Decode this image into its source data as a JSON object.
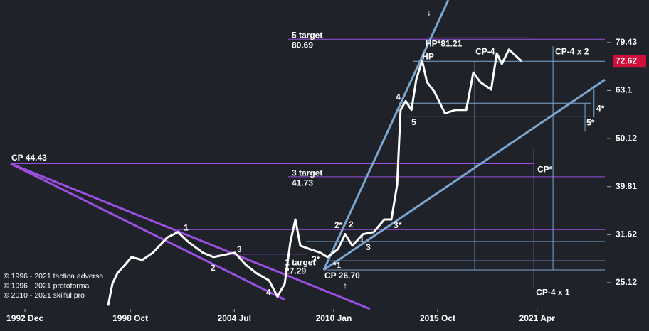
{
  "chart_data": {
    "type": "line",
    "log_scale": true,
    "xlim": [
      1991.54,
      2025.0
    ],
    "ylim": [
      22.14,
      97.4
    ],
    "xticks": [
      {
        "value": 1992.92,
        "label": "1992 Dec"
      },
      {
        "value": 1998.75,
        "label": "1998 Oct"
      },
      {
        "value": 2004.5,
        "label": "2004 Jul"
      },
      {
        "value": 2010.0,
        "label": "2010 Jan"
      },
      {
        "value": 2015.75,
        "label": "2015 Oct"
      },
      {
        "value": 2021.25,
        "label": "2021 Apr"
      }
    ],
    "yticks": [
      25.12,
      31.62,
      39.81,
      50.12,
      63.1,
      79.43
    ],
    "last_value": 72.62,
    "last_value_color": "#d0103a",
    "series": [
      {
        "color": "#ffffff",
        "x": [
          1997.52,
          1997.76,
          1998.04,
          1998.43,
          1998.82,
          1999.41,
          2000.0,
          2000.79,
          2001.38,
          2001.97,
          2002.76,
          2003.35,
          2003.94,
          2004.53,
          2005.12,
          2005.71,
          2006.42,
          2006.89,
          2007.29,
          2007.6,
          2007.88,
          2008.15,
          2008.67,
          2009.26,
          2009.65,
          2010.24,
          2010.63,
          2011.03,
          2011.62,
          2012.21,
          2012.8,
          2013.19,
          2013.51,
          2013.7,
          2013.98,
          2014.3,
          2014.57,
          2014.89,
          2015.16,
          2015.56,
          2016.15,
          2016.74,
          2017.33,
          2017.72,
          2018.11,
          2018.71,
          2019.02,
          2019.3,
          2019.69,
          2020.08,
          2020.4
        ],
        "values": [
          22.5,
          25,
          26.3,
          27.3,
          28.4,
          28,
          29,
          31.2,
          32,
          30.5,
          29,
          28.4,
          28.7,
          29,
          27.4,
          26.3,
          25.4,
          23.5,
          25,
          30.5,
          34,
          30,
          29.5,
          29,
          28.4,
          29.5,
          31.7,
          30,
          31.7,
          32,
          34,
          34,
          40.2,
          57.5,
          60,
          57.5,
          66.6,
          72.8,
          65.7,
          62.8,
          56.6,
          57.5,
          57.5,
          68.8,
          65.7,
          63.4,
          75.4,
          71.7,
          76.8,
          74.5,
          72.62
        ]
      }
    ],
    "levels": [
      {
        "value": 80.69,
        "from": 2007.48,
        "to": 2025.0,
        "color": "#9b4fe0"
      },
      {
        "value": 81.21,
        "from": 2015.16,
        "to": 2020.87,
        "color": "#b07ae8"
      },
      {
        "value": 72.62,
        "from": 2014.37,
        "to": 2025.0,
        "color": "#7aa6d0"
      },
      {
        "value": 59.4,
        "from": 2013.59,
        "to": 2024.22,
        "color": "#7aa6d0"
      },
      {
        "value": 55.8,
        "from": 2013.98,
        "to": 2024.22,
        "color": "#7aa6d0"
      },
      {
        "value": 44.43,
        "from": 1992.13,
        "to": 2021.07,
        "color": "#9b4fe0"
      },
      {
        "value": 41.73,
        "from": 2007.48,
        "to": 2025.0,
        "color": "#9b4fe0"
      },
      {
        "value": 32.4,
        "from": 2001.38,
        "to": 2025.0,
        "color": "#9b4fe0"
      },
      {
        "value": 30.6,
        "from": 2008.47,
        "to": 2025.0,
        "color": "#7aa6d0"
      },
      {
        "value": 28.8,
        "from": 2002.96,
        "to": 2008.47,
        "color": "#9b4fe0"
      },
      {
        "value": 27.9,
        "from": 2009.65,
        "to": 2025.0,
        "color": "#7aa6d0"
      },
      {
        "value": 26.7,
        "from": 2009.65,
        "to": 2025.0,
        "color": "#7aa6d0"
      }
    ],
    "verticals": [
      {
        "x": 2017.8,
        "from": 26.7,
        "to": 72.62,
        "color": "#7aa6d0"
      },
      {
        "x": 2022.13,
        "from": 26.7,
        "to": 78.0,
        "color": "#7aa6d0"
      },
      {
        "x": 2021.07,
        "from": 24.5,
        "to": 47.6,
        "color": "#9b4fe0"
      },
      {
        "x": 2023.9,
        "from": 51.8,
        "to": 59.4,
        "color": "#7aa6d0"
      },
      {
        "x": 2024.4,
        "from": 55.5,
        "to": 63.6,
        "color": "#7aa6d0"
      }
    ],
    "trendlines": [
      {
        "points": [
          [
            1992.13,
            44.43
          ],
          [
            2012.01,
            22.14
          ]
        ],
        "color": "#9b4fe0"
      },
      {
        "points": [
          [
            1992.13,
            44.43
          ],
          [
            2007.29,
            23.15
          ]
        ],
        "color": "#9b4fe0"
      },
      {
        "points": [
          [
            2009.45,
            26.7
          ],
          [
            2016.34,
            97.4
          ]
        ],
        "color": "#7aa6d0"
      },
      {
        "points": [
          [
            2009.45,
            26.7
          ],
          [
            2025.0,
            66.45
          ]
        ],
        "color": "#7aa6d0"
      }
    ],
    "annotations": [
      {
        "text": "5 target",
        "x": 2007.68,
        "y": 82.0
      },
      {
        "text": "80.69",
        "x": 2007.68,
        "y": 78.2
      },
      {
        "text": "HP*81.21",
        "x": 2015.08,
        "y": 78.8
      },
      {
        "text": "HP",
        "x": 2014.89,
        "y": 74.1
      },
      {
        "text": "CP-4",
        "x": 2017.84,
        "y": 75.9
      },
      {
        "text": "CP-4 x 2",
        "x": 2022.25,
        "y": 75.9
      },
      {
        "text": "4*",
        "x": 2024.53,
        "y": 57.8
      },
      {
        "text": "5*",
        "x": 2023.98,
        "y": 54.0
      },
      {
        "text": "4",
        "x": 2013.43,
        "y": 61.0
      },
      {
        "text": "5",
        "x": 2014.3,
        "y": 54.1
      },
      {
        "text": "CP*",
        "x": 2021.26,
        "y": 43.1
      },
      {
        "text": "3 target",
        "x": 2007.68,
        "y": 42.4
      },
      {
        "text": "41.73",
        "x": 2007.68,
        "y": 40.4
      },
      {
        "text": "CP 44.43",
        "x": 1992.17,
        "y": 45.6
      },
      {
        "text": "1",
        "x": 2001.7,
        "y": 32.6
      },
      {
        "text": "2*",
        "x": 2010.04,
        "y": 33.0
      },
      {
        "text": "2",
        "x": 2010.83,
        "y": 33.1
      },
      {
        "text": "3*",
        "x": 2013.31,
        "y": 33.0
      },
      {
        "text": "1",
        "x": 2011.42,
        "y": 30.8
      },
      {
        "text": "3",
        "x": 2011.78,
        "y": 29.7
      },
      {
        "text": "3",
        "x": 2004.65,
        "y": 29.4
      },
      {
        "text": "2",
        "x": 2003.19,
        "y": 26.9
      },
      {
        "text": "3*",
        "x": 2008.78,
        "y": 28.0
      },
      {
        "text": "1 target",
        "x": 2007.29,
        "y": 27.6
      },
      {
        "text": "27.29",
        "x": 2007.29,
        "y": 26.5
      },
      {
        "text": "*1",
        "x": 2009.96,
        "y": 27.2
      },
      {
        "text": "CP 26.70",
        "x": 2009.49,
        "y": 25.9
      },
      {
        "text": "4",
        "x": 2006.26,
        "y": 23.9
      },
      {
        "text": "CP-4 x 1",
        "x": 2021.19,
        "y": 23.9
      },
      {
        "text": "↓",
        "x": 2015.16,
        "y": 91.5
      },
      {
        "text": "↑",
        "x": 2010.52,
        "y": 24.7
      }
    ],
    "credits": [
      "© 1996 - 2021 tactica adversa",
      "© 1996 - 2021 protoforma",
      "© 2010 - 2021 skilful pro"
    ]
  }
}
